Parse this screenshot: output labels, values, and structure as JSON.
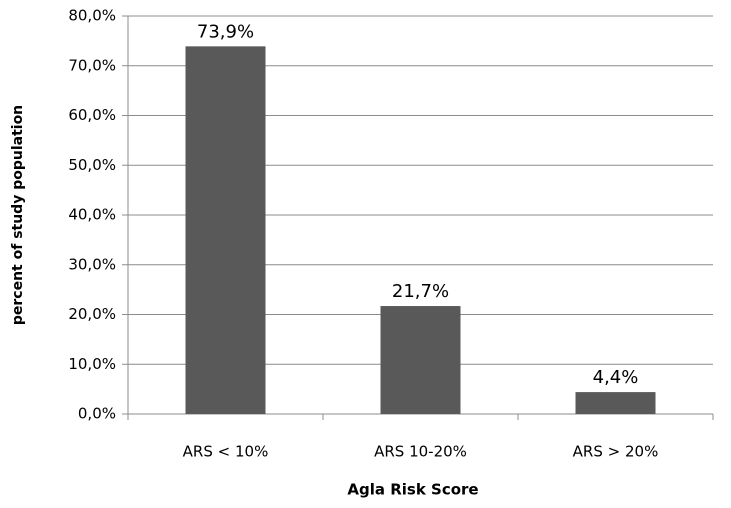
{
  "chart_data": {
    "type": "bar",
    "x_label": "Agla Risk  Score",
    "y_label": "percent of study population",
    "categories": [
      "ARS < 10%",
      "ARS 10-20%",
      "ARS > 20%"
    ],
    "values": [
      73.9,
      21.7,
      4.4
    ],
    "value_labels": [
      "73,9%",
      "21,7%",
      "4,4%"
    ],
    "color": "#595959",
    "ylim": [
      0,
      80
    ],
    "yticks": [
      {
        "value": 0,
        "label": "0,0%"
      },
      {
        "value": 10,
        "label": "10,0%"
      },
      {
        "value": 20,
        "label": "20,0%"
      },
      {
        "value": 30,
        "label": "30,0%"
      },
      {
        "value": 40,
        "label": "40,0%"
      },
      {
        "value": 50,
        "label": "50,0%"
      },
      {
        "value": 60,
        "label": "60,0%"
      },
      {
        "value": 70,
        "label": "70,0%"
      },
      {
        "value": 80,
        "label": "80,0%"
      }
    ],
    "grid": true
  }
}
